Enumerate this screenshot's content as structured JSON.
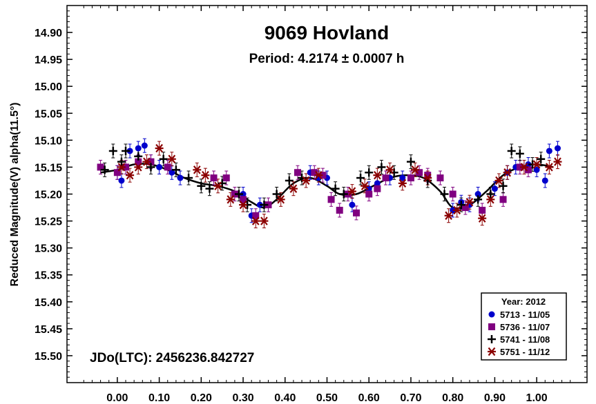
{
  "chart_data": {
    "type": "scatter",
    "title": "9069 Hovland",
    "subtitle": "Period: 4.2174 ± 0.0007 h",
    "xlabel": "",
    "ylabel": "Reduced Magnitude(V) alpha(11.5°)",
    "xlim": [
      -0.12,
      1.12
    ],
    "ylim": [
      15.55,
      14.85
    ],
    "y_inverted": true,
    "grid": false,
    "x_ticks": [
      0.0,
      0.1,
      0.2,
      0.3,
      0.4,
      0.5,
      0.6,
      0.7,
      0.8,
      0.9,
      1.0
    ],
    "x_tick_labels": [
      "0.00",
      "0.10",
      "0.20",
      "0.30",
      "0.40",
      "0.50",
      "0.60",
      "0.70",
      "0.80",
      "0.90",
      "1.00"
    ],
    "y_ticks": [
      14.9,
      14.95,
      15.0,
      15.05,
      15.1,
      15.15,
      15.2,
      15.25,
      15.3,
      15.35,
      15.4,
      15.45,
      15.5
    ],
    "y_tick_labels": [
      "14.90",
      "14.95",
      "15.00",
      "15.05",
      "15.10",
      "15.15",
      "15.20",
      "15.25",
      "15.30",
      "15.35",
      "15.40",
      "15.45",
      "15.50"
    ],
    "annotation": "JDo(LTC): 2456236.842727",
    "legend": {
      "title": "Year: 2012",
      "placement": "bottom-right"
    },
    "fit_curve": {
      "x": [
        -0.04,
        0.0,
        0.04,
        0.08,
        0.12,
        0.16,
        0.2,
        0.24,
        0.28,
        0.32,
        0.35,
        0.38,
        0.42,
        0.46,
        0.5,
        0.53,
        0.57,
        0.61,
        0.65,
        0.69,
        0.73,
        0.77,
        0.8,
        0.84,
        0.88,
        0.92,
        0.96,
        1.0,
        1.04
      ],
      "y": [
        15.16,
        15.155,
        15.145,
        15.145,
        15.155,
        15.17,
        15.18,
        15.185,
        15.195,
        15.215,
        15.225,
        15.21,
        15.18,
        15.17,
        15.185,
        15.2,
        15.2,
        15.185,
        15.17,
        15.165,
        15.17,
        15.195,
        15.225,
        15.22,
        15.195,
        15.165,
        15.15,
        15.145,
        15.15
      ]
    },
    "series": [
      {
        "name": "5713 - 11/05",
        "marker": "circle",
        "color": "#0000cc",
        "x": [
          0.0,
          0.01,
          0.03,
          0.05,
          0.065,
          0.08,
          0.1,
          0.13,
          0.15,
          0.3,
          0.32,
          0.34,
          0.46,
          0.48,
          0.5,
          0.56,
          0.6,
          0.62,
          0.65,
          0.68,
          0.8,
          0.82,
          0.84,
          0.86,
          0.9,
          0.93,
          0.95,
          0.98,
          1.0,
          1.02,
          1.03,
          1.05
        ],
        "y": [
          15.16,
          15.175,
          15.12,
          15.115,
          15.11,
          15.14,
          15.15,
          15.16,
          15.17,
          15.2,
          15.24,
          15.22,
          15.16,
          15.17,
          15.17,
          15.22,
          15.19,
          15.18,
          15.17,
          15.17,
          15.23,
          15.215,
          15.22,
          15.2,
          15.19,
          15.16,
          15.15,
          15.145,
          15.155,
          15.175,
          15.12,
          15.115
        ]
      },
      {
        "name": "5736 - 11/07",
        "marker": "square",
        "color": "#800080",
        "x": [
          -0.04,
          0.0,
          0.02,
          0.05,
          0.08,
          0.12,
          0.23,
          0.26,
          0.28,
          0.3,
          0.33,
          0.36,
          0.43,
          0.47,
          0.49,
          0.51,
          0.53,
          0.55,
          0.57,
          0.6,
          0.62,
          0.64,
          0.7,
          0.72,
          0.74,
          0.77,
          0.8,
          0.83,
          0.87,
          0.92,
          0.96,
          0.98
        ],
        "y": [
          15.15,
          15.16,
          15.15,
          15.14,
          15.14,
          15.15,
          15.17,
          15.17,
          15.2,
          15.21,
          15.24,
          15.22,
          15.16,
          15.16,
          15.165,
          15.21,
          15.23,
          15.2,
          15.235,
          15.2,
          15.19,
          15.17,
          15.17,
          15.16,
          15.165,
          15.17,
          15.2,
          15.225,
          15.23,
          15.21,
          15.15,
          15.155
        ]
      },
      {
        "name": "5741 - 11/08",
        "marker": "plus",
        "color": "#000000",
        "x": [
          -0.03,
          -0.01,
          0.01,
          0.02,
          0.05,
          0.08,
          0.11,
          0.14,
          0.17,
          0.2,
          0.22,
          0.25,
          0.29,
          0.31,
          0.35,
          0.38,
          0.41,
          0.44,
          0.52,
          0.54,
          0.58,
          0.6,
          0.63,
          0.66,
          0.7,
          0.74,
          0.78,
          0.82,
          0.86,
          0.89,
          0.92,
          0.94,
          0.96,
          0.99,
          1.01
        ],
        "y": [
          15.155,
          15.12,
          15.14,
          15.12,
          15.13,
          15.15,
          15.135,
          15.155,
          15.17,
          15.185,
          15.19,
          15.18,
          15.2,
          15.22,
          15.22,
          15.2,
          15.175,
          15.17,
          15.19,
          15.2,
          15.17,
          15.16,
          15.15,
          15.16,
          15.14,
          15.175,
          15.2,
          15.22,
          15.21,
          15.2,
          15.185,
          15.12,
          15.125,
          15.145,
          15.135
        ]
      },
      {
        "name": "5751 - 11/12",
        "marker": "asterisk",
        "color": "#8b0000",
        "x": [
          0.01,
          0.03,
          0.05,
          0.07,
          0.1,
          0.13,
          0.19,
          0.21,
          0.24,
          0.27,
          0.3,
          0.33,
          0.35,
          0.39,
          0.42,
          0.45,
          0.48,
          0.56,
          0.59,
          0.62,
          0.65,
          0.68,
          0.71,
          0.74,
          0.79,
          0.81,
          0.84,
          0.87,
          0.89,
          0.91,
          0.93,
          0.97,
          1.0,
          1.03,
          1.05
        ],
        "y": [
          15.15,
          15.165,
          15.15,
          15.14,
          15.115,
          15.135,
          15.155,
          15.165,
          15.185,
          15.21,
          15.22,
          15.25,
          15.25,
          15.21,
          15.19,
          15.175,
          15.165,
          15.195,
          15.185,
          15.165,
          15.155,
          15.18,
          15.155,
          15.17,
          15.24,
          15.23,
          15.215,
          15.245,
          15.21,
          15.175,
          15.16,
          15.15,
          15.145,
          15.15,
          15.14
        ]
      }
    ]
  }
}
